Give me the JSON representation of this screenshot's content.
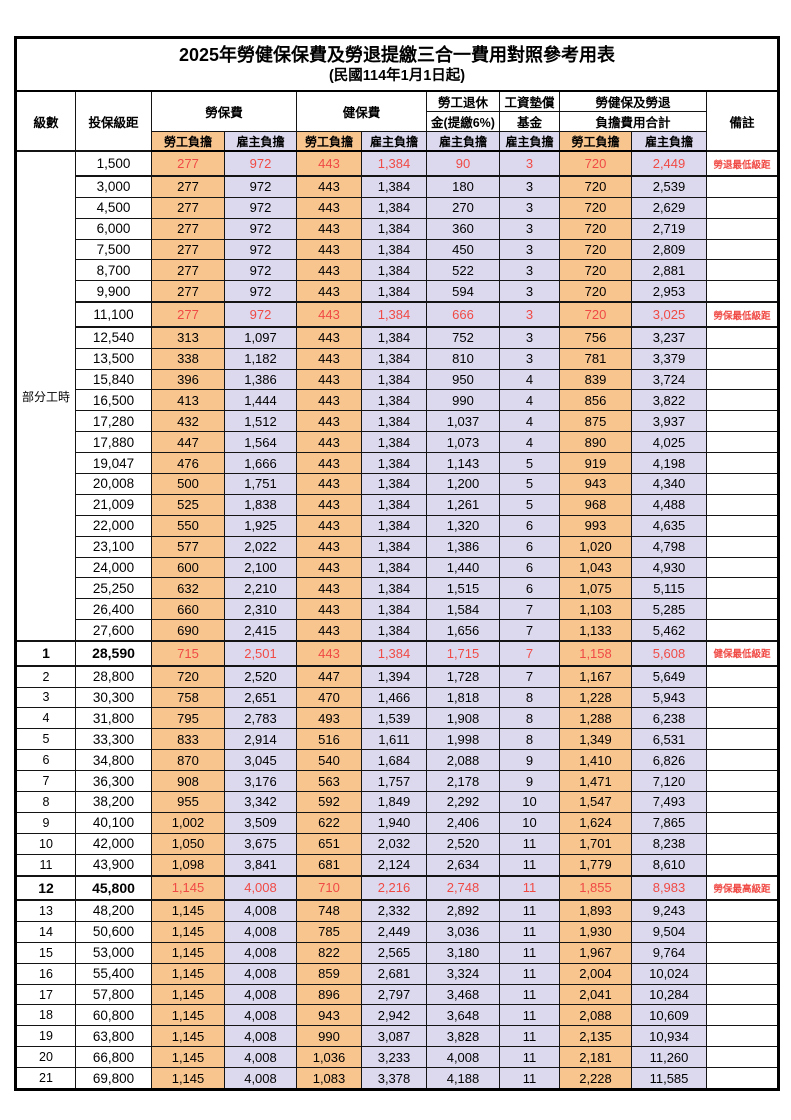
{
  "title": "2025年勞健保保費及勞退提繳三合一費用對照參考用表",
  "subtitle": "(民國114年1月1日起)",
  "colors": {
    "employee_bg": "#f8c58f",
    "employer_bg": "#dcd9ee",
    "highlight_text": "#f04a45",
    "border": "#141414"
  },
  "header": {
    "level": "級數",
    "bracket": "投保級距",
    "labor_insurance": "勞保費",
    "health_insurance": "健保費",
    "pension_line1": "勞工退休",
    "pension_line2": "金(提繳6%)",
    "wage_fund_line1": "工資墊償",
    "wage_fund_line2": "基金",
    "total_line1": "勞健保及勞退",
    "total_line2": "負擔費用合計",
    "employee_label": "勞工負擔",
    "employer_label": "雇主負擔",
    "remark": "備註"
  },
  "part_time_label": "部分工時",
  "part_time_span": 23,
  "row_schema": [
    "level",
    "insured_bracket",
    "labor_emp",
    "labor_er",
    "health_emp",
    "health_er",
    "pension_er",
    "wage_fund_er",
    "total_emp",
    "total_er",
    "remark",
    "highlight"
  ],
  "rows": [
    [
      "",
      "1,500",
      "277",
      "972",
      "443",
      "1,384",
      "90",
      "3",
      "720",
      "2,449",
      "勞退最低級距",
      1
    ],
    [
      "",
      "3,000",
      "277",
      "972",
      "443",
      "1,384",
      "180",
      "3",
      "720",
      "2,539",
      "",
      0
    ],
    [
      "",
      "4,500",
      "277",
      "972",
      "443",
      "1,384",
      "270",
      "3",
      "720",
      "2,629",
      "",
      0
    ],
    [
      "",
      "6,000",
      "277",
      "972",
      "443",
      "1,384",
      "360",
      "3",
      "720",
      "2,719",
      "",
      0
    ],
    [
      "",
      "7,500",
      "277",
      "972",
      "443",
      "1,384",
      "450",
      "3",
      "720",
      "2,809",
      "",
      0
    ],
    [
      "",
      "8,700",
      "277",
      "972",
      "443",
      "1,384",
      "522",
      "3",
      "720",
      "2,881",
      "",
      0
    ],
    [
      "",
      "9,900",
      "277",
      "972",
      "443",
      "1,384",
      "594",
      "3",
      "720",
      "2,953",
      "",
      0
    ],
    [
      "",
      "11,100",
      "277",
      "972",
      "443",
      "1,384",
      "666",
      "3",
      "720",
      "3,025",
      "勞保最低級距",
      1
    ],
    [
      "",
      "12,540",
      "313",
      "1,097",
      "443",
      "1,384",
      "752",
      "3",
      "756",
      "3,237",
      "",
      0
    ],
    [
      "",
      "13,500",
      "338",
      "1,182",
      "443",
      "1,384",
      "810",
      "3",
      "781",
      "3,379",
      "",
      0
    ],
    [
      "",
      "15,840",
      "396",
      "1,386",
      "443",
      "1,384",
      "950",
      "4",
      "839",
      "3,724",
      "",
      0
    ],
    [
      "",
      "16,500",
      "413",
      "1,444",
      "443",
      "1,384",
      "990",
      "4",
      "856",
      "3,822",
      "",
      0
    ],
    [
      "",
      "17,280",
      "432",
      "1,512",
      "443",
      "1,384",
      "1,037",
      "4",
      "875",
      "3,937",
      "",
      0
    ],
    [
      "",
      "17,880",
      "447",
      "1,564",
      "443",
      "1,384",
      "1,073",
      "4",
      "890",
      "4,025",
      "",
      0
    ],
    [
      "",
      "19,047",
      "476",
      "1,666",
      "443",
      "1,384",
      "1,143",
      "5",
      "919",
      "4,198",
      "",
      0
    ],
    [
      "",
      "20,008",
      "500",
      "1,751",
      "443",
      "1,384",
      "1,200",
      "5",
      "943",
      "4,340",
      "",
      0
    ],
    [
      "",
      "21,009",
      "525",
      "1,838",
      "443",
      "1,384",
      "1,261",
      "5",
      "968",
      "4,488",
      "",
      0
    ],
    [
      "",
      "22,000",
      "550",
      "1,925",
      "443",
      "1,384",
      "1,320",
      "6",
      "993",
      "4,635",
      "",
      0
    ],
    [
      "",
      "23,100",
      "577",
      "2,022",
      "443",
      "1,384",
      "1,386",
      "6",
      "1,020",
      "4,798",
      "",
      0
    ],
    [
      "",
      "24,000",
      "600",
      "2,100",
      "443",
      "1,384",
      "1,440",
      "6",
      "1,043",
      "4,930",
      "",
      0
    ],
    [
      "",
      "25,250",
      "632",
      "2,210",
      "443",
      "1,384",
      "1,515",
      "6",
      "1,075",
      "5,115",
      "",
      0
    ],
    [
      "",
      "26,400",
      "660",
      "2,310",
      "443",
      "1,384",
      "1,584",
      "7",
      "1,103",
      "5,285",
      "",
      0
    ],
    [
      "",
      "27,600",
      "690",
      "2,415",
      "443",
      "1,384",
      "1,656",
      "7",
      "1,133",
      "5,462",
      "",
      0
    ],
    [
      "1",
      "28,590",
      "715",
      "2,501",
      "443",
      "1,384",
      "1,715",
      "7",
      "1,158",
      "5,608",
      "健保最低級距",
      1
    ],
    [
      "2",
      "28,800",
      "720",
      "2,520",
      "447",
      "1,394",
      "1,728",
      "7",
      "1,167",
      "5,649",
      "",
      0
    ],
    [
      "3",
      "30,300",
      "758",
      "2,651",
      "470",
      "1,466",
      "1,818",
      "8",
      "1,228",
      "5,943",
      "",
      0
    ],
    [
      "4",
      "31,800",
      "795",
      "2,783",
      "493",
      "1,539",
      "1,908",
      "8",
      "1,288",
      "6,238",
      "",
      0
    ],
    [
      "5",
      "33,300",
      "833",
      "2,914",
      "516",
      "1,611",
      "1,998",
      "8",
      "1,349",
      "6,531",
      "",
      0
    ],
    [
      "6",
      "34,800",
      "870",
      "3,045",
      "540",
      "1,684",
      "2,088",
      "9",
      "1,410",
      "6,826",
      "",
      0
    ],
    [
      "7",
      "36,300",
      "908",
      "3,176",
      "563",
      "1,757",
      "2,178",
      "9",
      "1,471",
      "7,120",
      "",
      0
    ],
    [
      "8",
      "38,200",
      "955",
      "3,342",
      "592",
      "1,849",
      "2,292",
      "10",
      "1,547",
      "7,493",
      "",
      0
    ],
    [
      "9",
      "40,100",
      "1,002",
      "3,509",
      "622",
      "1,940",
      "2,406",
      "10",
      "1,624",
      "7,865",
      "",
      0
    ],
    [
      "10",
      "42,000",
      "1,050",
      "3,675",
      "651",
      "2,032",
      "2,520",
      "11",
      "1,701",
      "8,238",
      "",
      0
    ],
    [
      "11",
      "43,900",
      "1,098",
      "3,841",
      "681",
      "2,124",
      "2,634",
      "11",
      "1,779",
      "8,610",
      "",
      0
    ],
    [
      "12",
      "45,800",
      "1,145",
      "4,008",
      "710",
      "2,216",
      "2,748",
      "11",
      "1,855",
      "8,983",
      "勞保最高級距",
      1
    ],
    [
      "13",
      "48,200",
      "1,145",
      "4,008",
      "748",
      "2,332",
      "2,892",
      "11",
      "1,893",
      "9,243",
      "",
      0
    ],
    [
      "14",
      "50,600",
      "1,145",
      "4,008",
      "785",
      "2,449",
      "3,036",
      "11",
      "1,930",
      "9,504",
      "",
      0
    ],
    [
      "15",
      "53,000",
      "1,145",
      "4,008",
      "822",
      "2,565",
      "3,180",
      "11",
      "1,967",
      "9,764",
      "",
      0
    ],
    [
      "16",
      "55,400",
      "1,145",
      "4,008",
      "859",
      "2,681",
      "3,324",
      "11",
      "2,004",
      "10,024",
      "",
      0
    ],
    [
      "17",
      "57,800",
      "1,145",
      "4,008",
      "896",
      "2,797",
      "3,468",
      "11",
      "2,041",
      "10,284",
      "",
      0
    ],
    [
      "18",
      "60,800",
      "1,145",
      "4,008",
      "943",
      "2,942",
      "3,648",
      "11",
      "2,088",
      "10,609",
      "",
      0
    ],
    [
      "19",
      "63,800",
      "1,145",
      "4,008",
      "990",
      "3,087",
      "3,828",
      "11",
      "2,135",
      "10,934",
      "",
      0
    ],
    [
      "20",
      "66,800",
      "1,145",
      "4,008",
      "1,036",
      "3,233",
      "4,008",
      "11",
      "2,181",
      "11,260",
      "",
      0
    ],
    [
      "21",
      "69,800",
      "1,145",
      "4,008",
      "1,083",
      "3,378",
      "4,188",
      "11",
      "2,228",
      "11,585",
      "",
      0
    ]
  ]
}
